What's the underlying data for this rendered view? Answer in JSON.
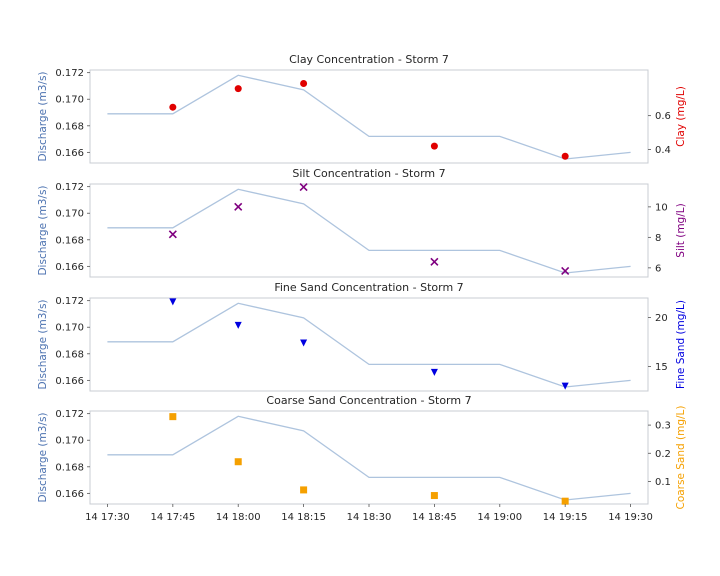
{
  "chart_data": {
    "type": "line",
    "shared_x": {
      "ticks": [
        "14 17:30",
        "14 17:45",
        "14 18:00",
        "14 18:15",
        "14 18:30",
        "14 18:45",
        "14 19:00",
        "14 19:15",
        "14 19:30"
      ]
    },
    "discharge": {
      "ylabel": "Discharge (m3/s)",
      "color": "#4C72B0",
      "line_color": "#aec4de",
      "ylim": [
        0.1652,
        0.1722
      ],
      "yticks": [
        "0.166",
        "0.168",
        "0.170",
        "0.172"
      ],
      "x": [
        "17:30",
        "17:45",
        "18:00",
        "18:15",
        "18:30",
        "18:45",
        "19:00",
        "19:15",
        "19:30"
      ],
      "values": [
        0.1689,
        0.1689,
        0.1718,
        0.1707,
        0.1672,
        0.1672,
        0.1672,
        0.1655,
        0.166
      ]
    },
    "panels": [
      {
        "title": "Clay Concentration - Storm 7",
        "y2label": "Clay (mg/L)",
        "color": "#e00000",
        "marker": "circle",
        "ylim2": [
          0.32,
          0.87
        ],
        "y2ticks": [
          "0.4",
          "0.6"
        ],
        "x": [
          "17:45",
          "18:00",
          "18:15",
          "18:45",
          "19:15"
        ],
        "values": [
          0.65,
          0.76,
          0.79,
          0.42,
          0.36
        ]
      },
      {
        "title": "Silt Concentration - Storm 7",
        "y2label": "Silt (mg/L)",
        "color": "#800080",
        "marker": "x",
        "ylim2": [
          5.4,
          11.5
        ],
        "y2ticks": [
          "6",
          "8",
          "10"
        ],
        "x": [
          "17:45",
          "18:00",
          "18:15",
          "18:45",
          "19:15"
        ],
        "values": [
          8.2,
          10.0,
          11.3,
          6.4,
          5.8
        ]
      },
      {
        "title": "Fine Sand Concentration - Storm 7",
        "y2label": "Fine Sand (mg/L)",
        "color": "#0000e0",
        "marker": "triangle-down",
        "ylim2": [
          12.5,
          22.0
        ],
        "y2ticks": [
          "15",
          "20"
        ],
        "x": [
          "17:45",
          "18:00",
          "18:15",
          "18:45",
          "19:15"
        ],
        "values": [
          21.6,
          19.2,
          17.4,
          14.4,
          13.0
        ]
      },
      {
        "title": "Coarse Sand Concentration - Storm 7",
        "y2label": "Coarse Sand (mg/L)",
        "color": "#f5a000",
        "marker": "square",
        "ylim2": [
          0.02,
          0.35
        ],
        "y2ticks": [
          "0.1",
          "0.2",
          "0.3"
        ],
        "x": [
          "17:45",
          "18:00",
          "18:15",
          "18:45",
          "19:15"
        ],
        "values": [
          0.33,
          0.17,
          0.07,
          0.05,
          0.03
        ]
      }
    ]
  }
}
